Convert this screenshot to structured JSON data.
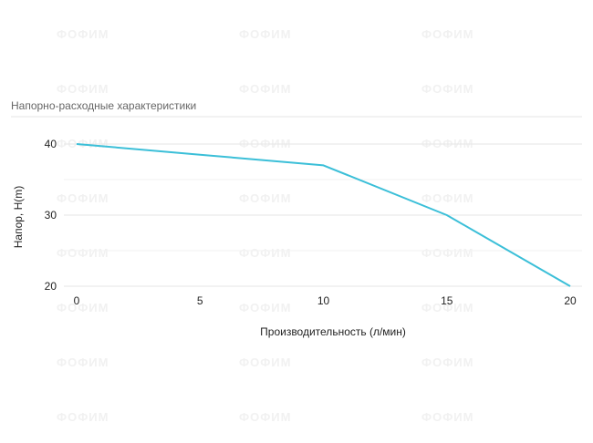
{
  "watermark_text": "ФОФИМ",
  "chart_data": {
    "type": "line",
    "title": "Напорно-расходные характеристики",
    "xlabel": "Производительность (л/мин)",
    "ylabel": "Напор, H(m)",
    "x": [
      0,
      5,
      10,
      15,
      20
    ],
    "series": [
      {
        "values": [
          40,
          38.5,
          37,
          30,
          20
        ],
        "color": "#3bbfd8"
      }
    ],
    "xlim": [
      0,
      20
    ],
    "ylim": [
      20,
      40
    ],
    "x_ticks": [
      0,
      5,
      10,
      15,
      20
    ],
    "y_ticks": [
      20,
      30,
      40
    ],
    "grid": true,
    "gridline_color": "#e6e6e6"
  }
}
